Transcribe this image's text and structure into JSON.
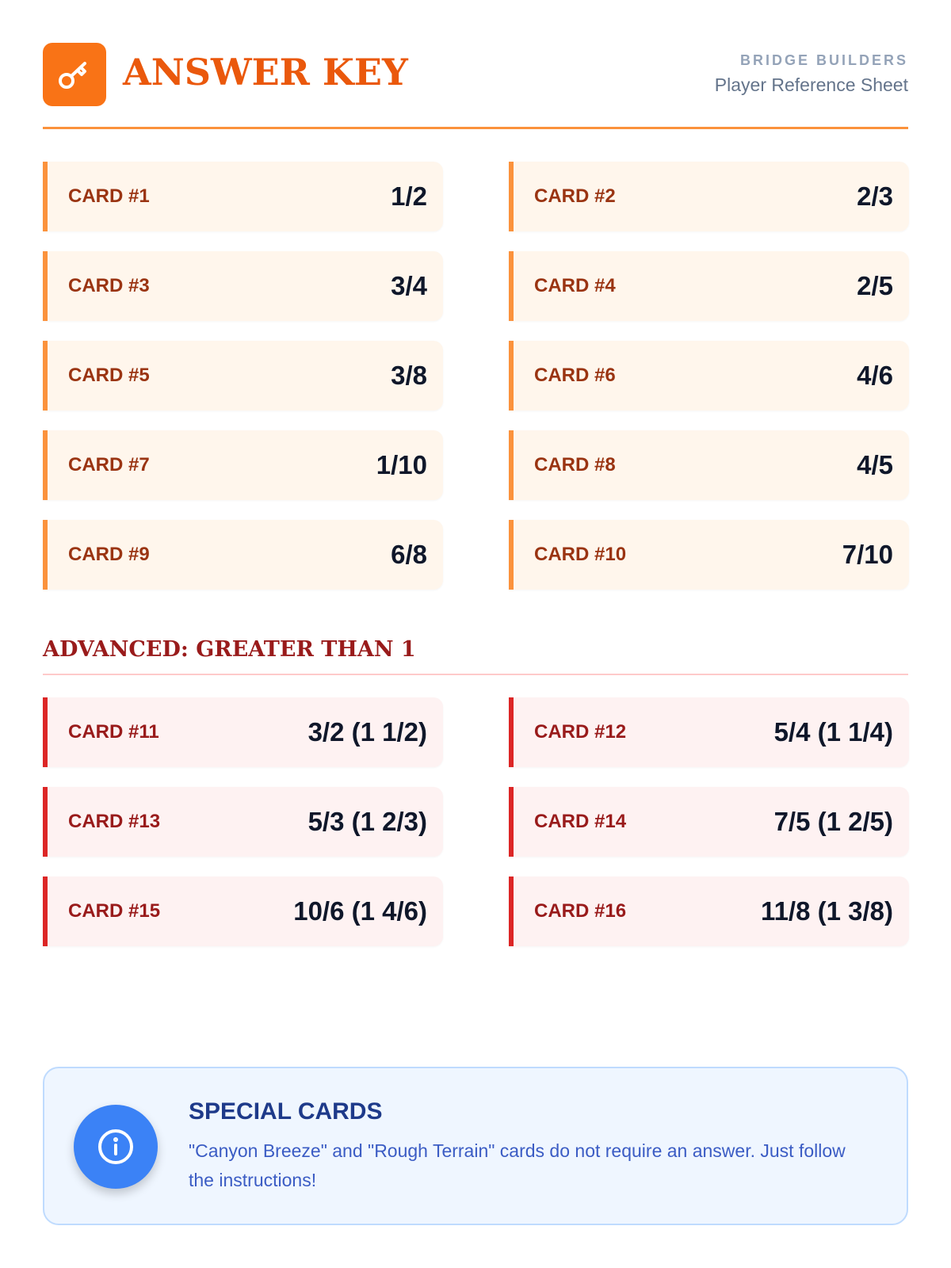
{
  "header": {
    "title": "ANSWER KEY",
    "brand": "BRIDGE BUILDERS",
    "subtitle": "Player Reference Sheet"
  },
  "basic_cards": [
    {
      "label": "CARD #1",
      "answer": "1/2"
    },
    {
      "label": "CARD #2",
      "answer": "2/3"
    },
    {
      "label": "CARD #3",
      "answer": "3/4"
    },
    {
      "label": "CARD #4",
      "answer": "2/5"
    },
    {
      "label": "CARD #5",
      "answer": "3/8"
    },
    {
      "label": "CARD #6",
      "answer": "4/6"
    },
    {
      "label": "CARD #7",
      "answer": "1/10"
    },
    {
      "label": "CARD #8",
      "answer": "4/5"
    },
    {
      "label": "CARD #9",
      "answer": "6/8"
    },
    {
      "label": "CARD #10",
      "answer": "7/10"
    }
  ],
  "advanced": {
    "heading": "ADVANCED: GREATER THAN 1",
    "cards": [
      {
        "label": "CARD #11",
        "answer": "3/2 (1 1/2)"
      },
      {
        "label": "CARD #12",
        "answer": "5/4 (1 1/4)"
      },
      {
        "label": "CARD #13",
        "answer": "5/3 (1 2/3)"
      },
      {
        "label": "CARD #14",
        "answer": "7/5 (1 2/5)"
      },
      {
        "label": "CARD #15",
        "answer": "10/6 (1 4/6)"
      },
      {
        "label": "CARD #16",
        "answer": "11/8 (1 3/8)"
      }
    ]
  },
  "info": {
    "title": "SPECIAL CARDS",
    "text": "\"Canyon Breeze\" and \"Rough Terrain\" cards do not require an answer. Just follow the instructions!"
  },
  "colors": {
    "accent": "#f97316",
    "advanced": "#dc2626",
    "info": "#3b82f6"
  }
}
